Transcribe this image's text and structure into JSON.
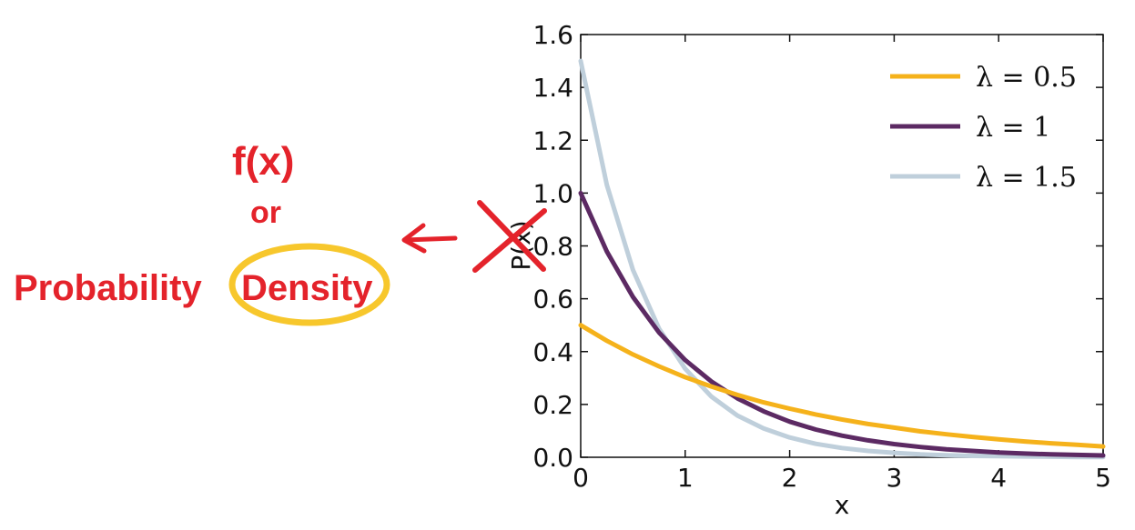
{
  "chart_data": {
    "type": "line",
    "xlabel": "x",
    "ylabel": "P(x)",
    "xlim": [
      0,
      5
    ],
    "ylim": [
      0,
      1.6
    ],
    "xticks": [
      "0",
      "1",
      "2",
      "3",
      "4",
      "5"
    ],
    "yticks": [
      "0.0",
      "0.2",
      "0.4",
      "0.6",
      "0.8",
      "1.0",
      "1.2",
      "1.4",
      "1.6"
    ],
    "grid": false,
    "legend_position": "top-right",
    "x": [
      0,
      0.25,
      0.5,
      0.75,
      1,
      1.25,
      1.5,
      1.75,
      2,
      2.25,
      2.5,
      2.75,
      3,
      3.25,
      3.5,
      3.75,
      4,
      4.25,
      4.5,
      4.75,
      5
    ],
    "series": [
      {
        "name": "λ = 0.5",
        "color": "#f5b21b",
        "values": [
          0.5,
          0.441,
          0.389,
          0.344,
          0.303,
          0.268,
          0.236,
          0.208,
          0.184,
          0.162,
          0.143,
          0.126,
          0.112,
          0.098,
          0.087,
          0.077,
          0.068,
          0.06,
          0.053,
          0.047,
          0.041
        ]
      },
      {
        "name": "λ = 1",
        "color": "#5c2a63",
        "values": [
          1.0,
          0.779,
          0.607,
          0.472,
          0.368,
          0.287,
          0.223,
          0.174,
          0.135,
          0.105,
          0.082,
          0.064,
          0.05,
          0.039,
          0.03,
          0.024,
          0.018,
          0.014,
          0.011,
          0.009,
          0.007
        ]
      },
      {
        "name": "λ = 1.5",
        "color": "#bfcfdb",
        "values": [
          1.5,
          1.031,
          0.709,
          0.487,
          0.335,
          0.23,
          0.158,
          0.109,
          0.075,
          0.051,
          0.035,
          0.024,
          0.017,
          0.011,
          0.008,
          0.005,
          0.004,
          0.003,
          0.002,
          0.001,
          0.001
        ]
      }
    ]
  },
  "annotations": {
    "fx": "f(x)",
    "or": "or",
    "probability": "Probability",
    "density": "Density",
    "highlight_color": "#f7c72c",
    "ink_color": "#e4232b"
  }
}
